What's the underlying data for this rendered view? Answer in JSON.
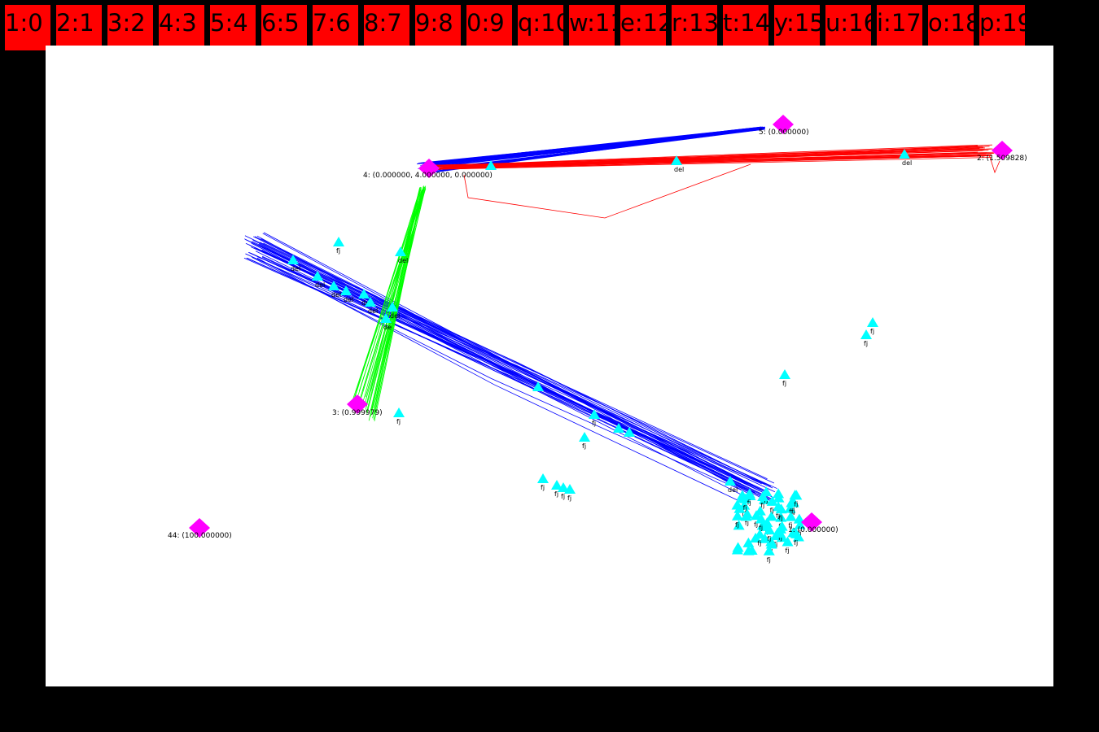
{
  "tabs": [
    {
      "label": "1:0"
    },
    {
      "label": "2:1"
    },
    {
      "label": "3:2"
    },
    {
      "label": "4:3"
    },
    {
      "label": "5:4"
    },
    {
      "label": "6:5"
    },
    {
      "label": "7:6"
    },
    {
      "label": "8:7"
    },
    {
      "label": "9:8"
    },
    {
      "label": "0:9"
    },
    {
      "label": "q:10"
    },
    {
      "label": "w:11"
    },
    {
      "label": "e:12"
    },
    {
      "label": "r:13"
    },
    {
      "label": "t:14"
    },
    {
      "label": "y:15"
    },
    {
      "label": "u:16"
    },
    {
      "label": "i:17"
    },
    {
      "label": "o:18"
    },
    {
      "label": "p:19"
    }
  ],
  "colors": {
    "tab": "#ff0000",
    "background": "#000000",
    "canvas": "#ffffff",
    "node": "#ff00ff",
    "agent": "#00ffff",
    "red_trail": "#ff0000",
    "blue_trail": "#0000ff",
    "green_trail": "#00ff00"
  },
  "nodes": {
    "n4": {
      "label": "4: (0.000000, 4.000000, 0.000000)"
    },
    "n5": {
      "label": "5: (0.000000)"
    },
    "n2": {
      "label": "2: (1.509828)"
    },
    "n3": {
      "label": "3: (0.999979)"
    },
    "n1": {
      "label": "1: (0.000000)"
    },
    "n44": {
      "label": "44: (100.000000)"
    }
  },
  "agent_labels": {
    "del": "del",
    "fj": "fj",
    "de": "de"
  }
}
